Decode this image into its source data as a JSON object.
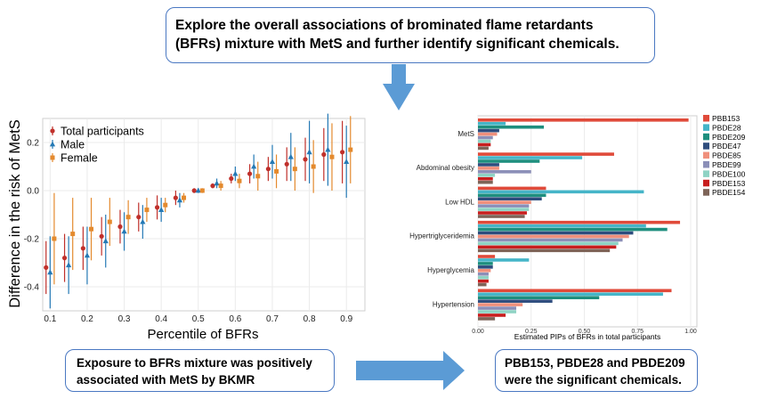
{
  "top_box": {
    "line1": "Explore the overall associations of brominated flame retardants",
    "line2": "(BFRs) mixture with MetS and further identify significant chemicals."
  },
  "bottom_left_box": {
    "line1": "Exposure to BFRs mixture was positively",
    "line2": "associated with MetS by BKMR"
  },
  "bottom_right_box": {
    "line1": "PBB153, PBDE28 and PBDE209",
    "line2": "were the significant chemicals."
  },
  "colors": {
    "arrow": "#5b9bd5",
    "box_border": "#4a78c2",
    "total": "#c0302b",
    "male": "#2479b5",
    "female": "#e48a2e"
  },
  "chart_data": [
    {
      "type": "scatter",
      "xlabel": "Percentile of BFRs",
      "ylabel": "Difference in the risk of MetS",
      "xlim": [
        0.08,
        0.95
      ],
      "ylim": [
        -0.5,
        0.3
      ],
      "xticks": [
        "0.1",
        "0.2",
        "0.3",
        "0.4",
        "0.5",
        "0.6",
        "0.7",
        "0.8",
        "0.9"
      ],
      "yticks": [
        "0.2",
        "0.0",
        "-0.2",
        "-0.4"
      ],
      "legend": [
        "Total participants",
        "Male",
        "Female"
      ],
      "legend_position": "top-left",
      "x": [
        0.1,
        0.15,
        0.2,
        0.25,
        0.3,
        0.35,
        0.4,
        0.45,
        0.5,
        0.55,
        0.6,
        0.65,
        0.7,
        0.75,
        0.8,
        0.85,
        0.9
      ],
      "series": [
        {
          "name": "Total participants",
          "marker": "circle",
          "values": [
            -0.32,
            -0.28,
            -0.24,
            -0.19,
            -0.15,
            -0.11,
            -0.07,
            -0.03,
            0.0,
            0.02,
            0.05,
            0.07,
            0.09,
            0.11,
            0.13,
            0.15,
            0.16
          ],
          "lower": [
            -0.43,
            -0.38,
            -0.33,
            -0.27,
            -0.22,
            -0.17,
            -0.12,
            -0.06,
            -0.01,
            0.01,
            0.03,
            0.03,
            0.04,
            0.04,
            0.04,
            0.04,
            0.03
          ],
          "upper": [
            -0.21,
            -0.18,
            -0.15,
            -0.11,
            -0.08,
            -0.05,
            -0.02,
            0.0,
            0.01,
            0.03,
            0.07,
            0.11,
            0.14,
            0.18,
            0.22,
            0.26,
            0.29
          ]
        },
        {
          "name": "Male",
          "marker": "triangle",
          "values": [
            -0.34,
            -0.31,
            -0.27,
            -0.21,
            -0.17,
            -0.13,
            -0.08,
            -0.04,
            0.0,
            0.03,
            0.07,
            0.1,
            0.12,
            0.14,
            0.16,
            0.17,
            0.12
          ],
          "lower": [
            -0.49,
            -0.43,
            -0.39,
            -0.32,
            -0.25,
            -0.2,
            -0.13,
            -0.07,
            -0.01,
            0.01,
            0.04,
            0.05,
            0.05,
            0.04,
            0.03,
            0.02,
            -0.03
          ],
          "upper": [
            -0.19,
            -0.19,
            -0.15,
            -0.1,
            -0.09,
            -0.06,
            -0.03,
            -0.01,
            0.01,
            0.05,
            0.1,
            0.15,
            0.19,
            0.24,
            0.29,
            0.32,
            0.27
          ]
        },
        {
          "name": "Female",
          "marker": "square",
          "values": [
            -0.2,
            -0.18,
            -0.16,
            -0.13,
            -0.11,
            -0.08,
            -0.06,
            -0.03,
            0.0,
            0.02,
            0.04,
            0.06,
            0.08,
            0.09,
            0.1,
            0.14,
            0.17
          ],
          "lower": [
            -0.39,
            -0.33,
            -0.29,
            -0.23,
            -0.18,
            -0.13,
            -0.09,
            -0.05,
            -0.01,
            0.0,
            0.01,
            0.0,
            0.01,
            0.0,
            -0.01,
            0.0,
            0.03
          ],
          "upper": [
            -0.01,
            -0.03,
            -0.03,
            -0.03,
            -0.04,
            -0.03,
            -0.03,
            -0.01,
            0.01,
            0.04,
            0.07,
            0.12,
            0.15,
            0.18,
            0.21,
            0.28,
            0.31
          ]
        }
      ]
    },
    {
      "type": "bar",
      "orientation": "horizontal",
      "xlabel": "Estimated PIPs of BFRs in total participants",
      "xlim": [
        0,
        1
      ],
      "xticks": [
        "0.00",
        "0.25",
        "0.50",
        "0.75",
        "1.00"
      ],
      "categories": [
        "MetS",
        "Abdominal obesity",
        "Low HDL",
        "Hypertriglyceridemia",
        "Hyperglycemia",
        "Hypertension"
      ],
      "legend_position": "right",
      "series": [
        {
          "name": "PBB153",
          "color": "#e04a3a",
          "values": [
            0.99,
            0.64,
            0.32,
            0.95,
            0.08,
            0.91
          ]
        },
        {
          "name": "PBDE28",
          "color": "#45b5c8",
          "values": [
            0.13,
            0.49,
            0.78,
            0.79,
            0.24,
            0.87
          ]
        },
        {
          "name": "PBDE209",
          "color": "#1e8f7e",
          "values": [
            0.31,
            0.29,
            0.32,
            0.89,
            0.07,
            0.57
          ]
        },
        {
          "name": "PBDE47",
          "color": "#2e4d7e",
          "values": [
            0.1,
            0.1,
            0.3,
            0.73,
            0.07,
            0.35
          ]
        },
        {
          "name": "PBDE85",
          "color": "#f0907c",
          "values": [
            0.09,
            0.1,
            0.25,
            0.71,
            0.06,
            0.21
          ]
        },
        {
          "name": "PBDE99",
          "color": "#8b8fb8",
          "values": [
            0.07,
            0.25,
            0.24,
            0.68,
            0.05,
            0.18
          ]
        },
        {
          "name": "PBDE100",
          "color": "#8fd3c4",
          "values": [
            0.06,
            0.08,
            0.24,
            0.66,
            0.05,
            0.18
          ]
        },
        {
          "name": "PBDE153",
          "color": "#c81e1e",
          "values": [
            0.06,
            0.07,
            0.23,
            0.65,
            0.05,
            0.13
          ]
        },
        {
          "name": "PBDE154",
          "color": "#7e6458",
          "values": [
            0.05,
            0.07,
            0.22,
            0.62,
            0.04,
            0.08
          ]
        }
      ]
    }
  ]
}
